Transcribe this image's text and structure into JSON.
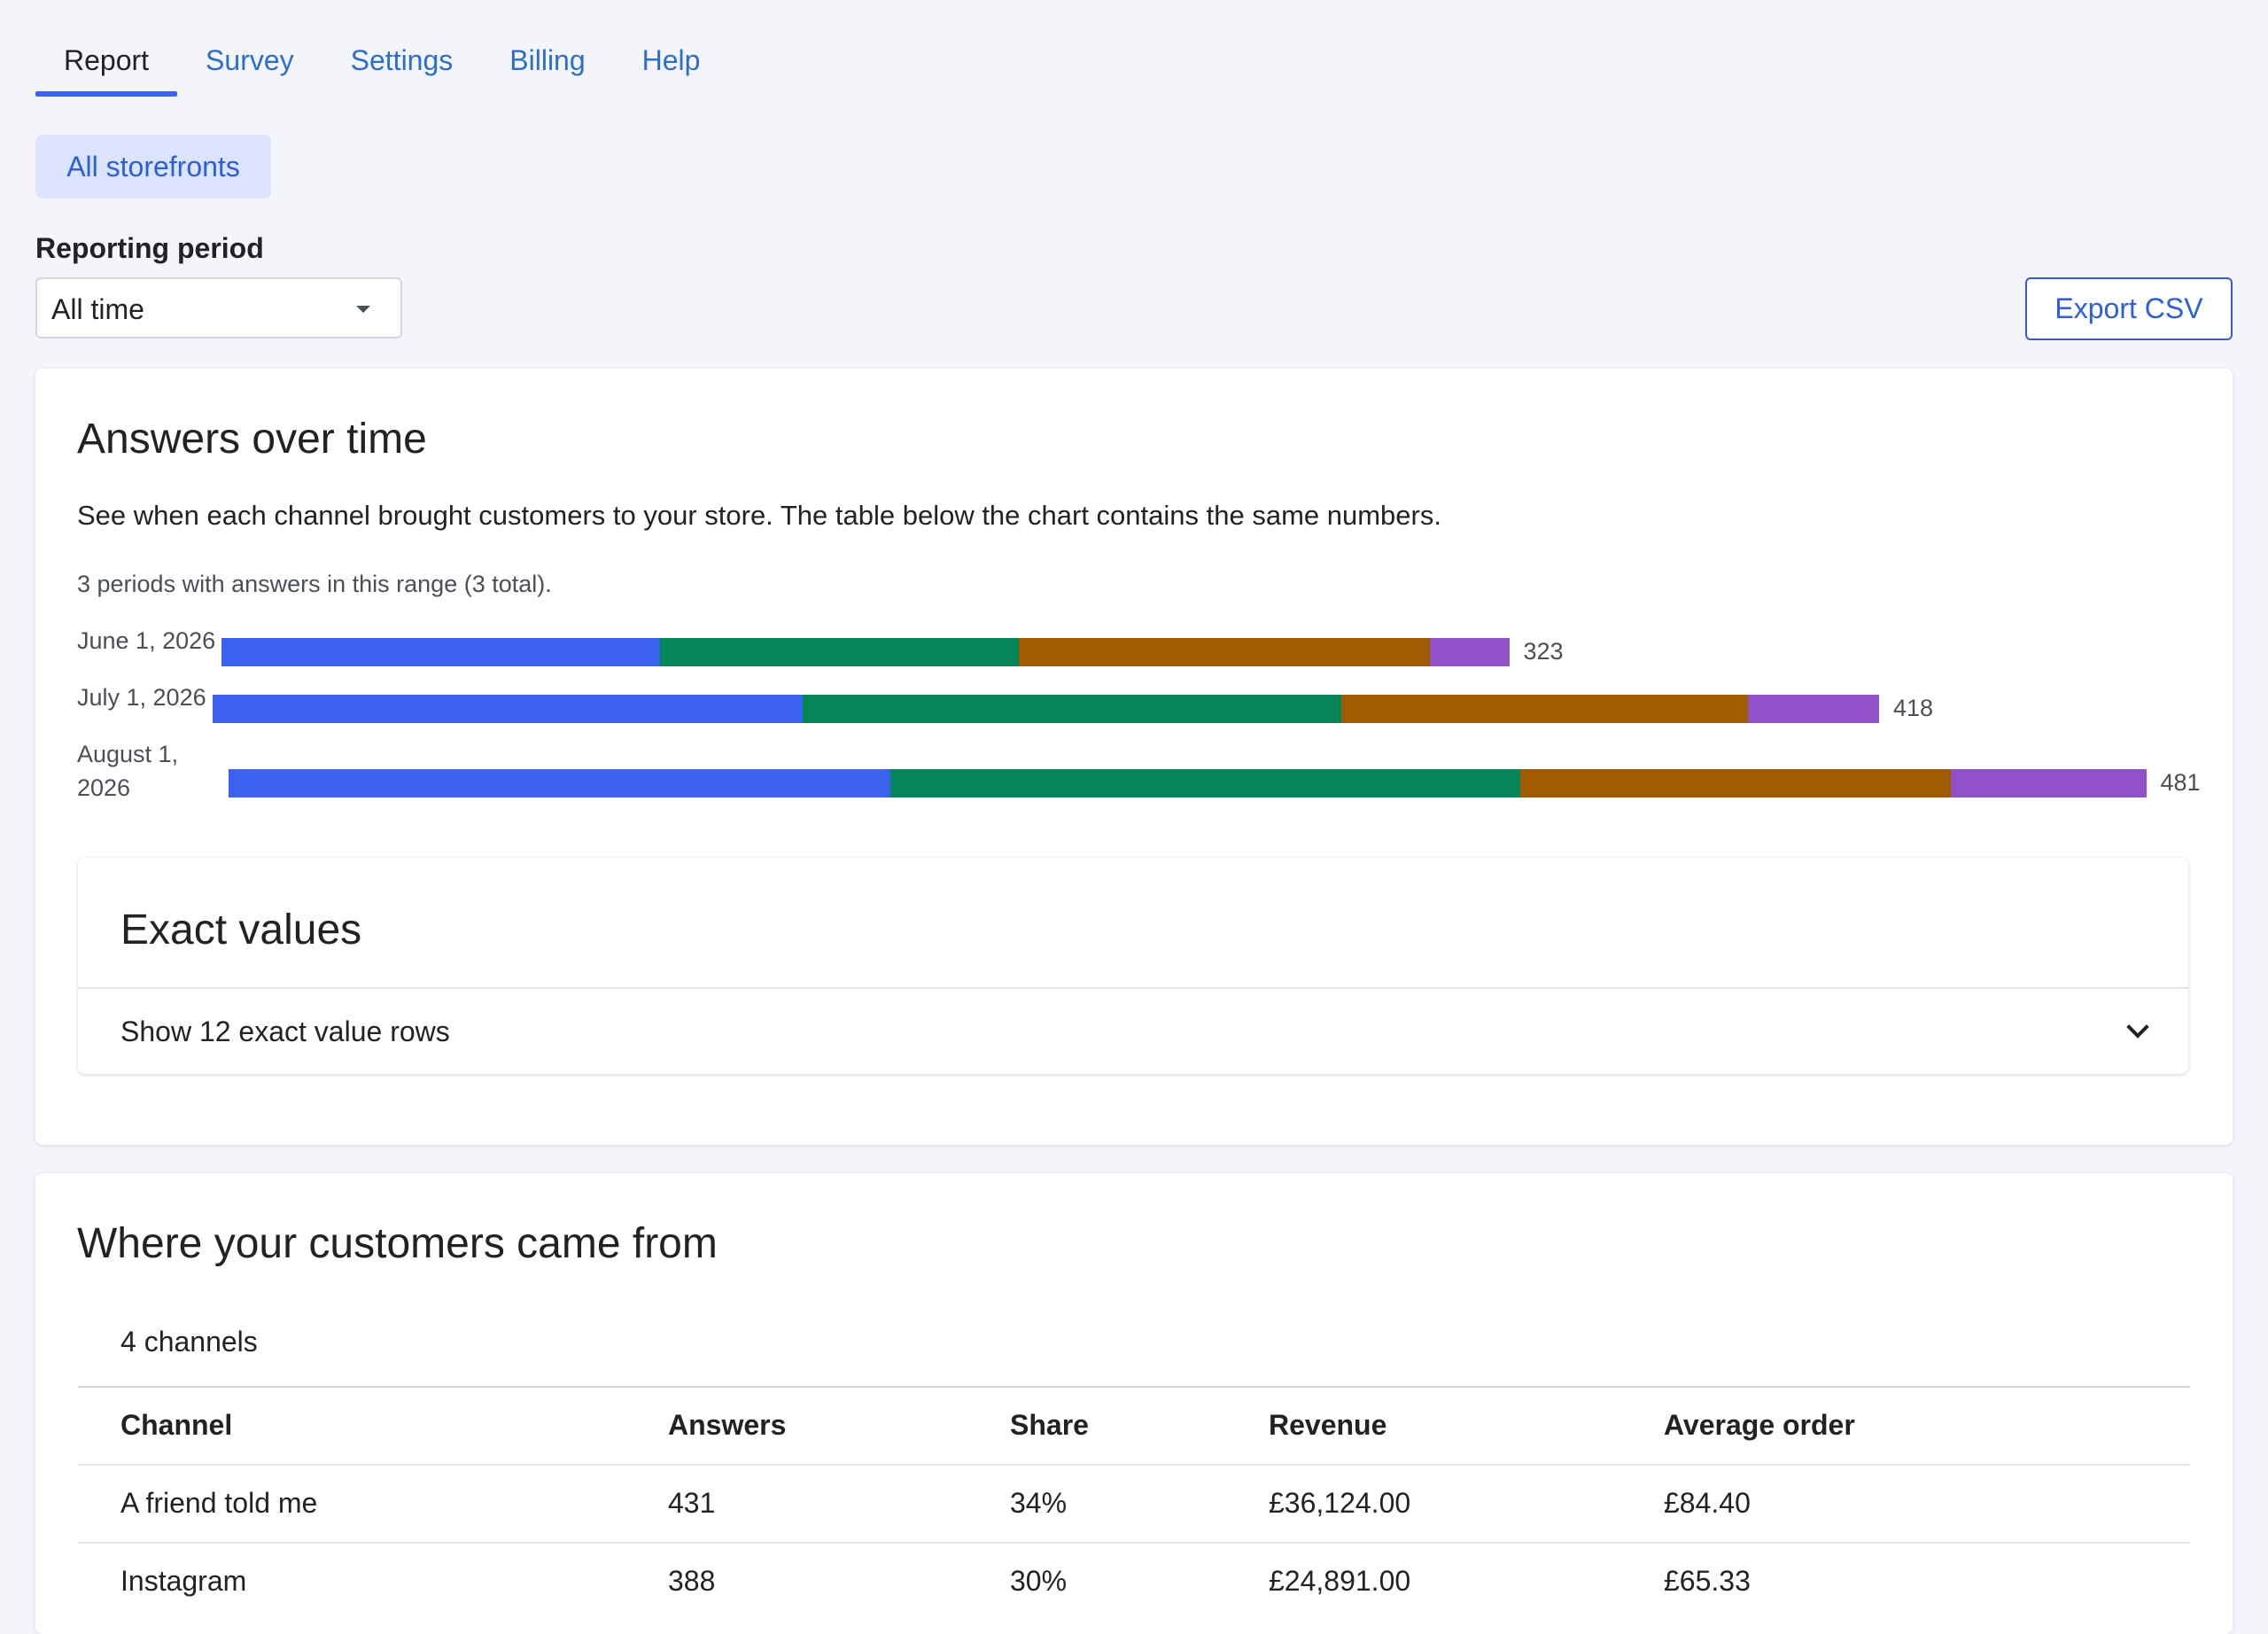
{
  "nav": {
    "tabs": [
      {
        "label": "Report",
        "active": true
      },
      {
        "label": "Survey",
        "active": false
      },
      {
        "label": "Settings",
        "active": false
      },
      {
        "label": "Billing",
        "active": false
      },
      {
        "label": "Help",
        "active": false
      }
    ]
  },
  "filters": {
    "storefront_pill": "All storefronts",
    "period_label": "Reporting period",
    "period_value": "All time",
    "export_label": "Export CSV"
  },
  "answers_card": {
    "title": "Answers over time",
    "description": "See when each channel brought customers to your store. The table below the chart contains the same numbers.",
    "count_text": "3 periods with answers in this range (3 total).",
    "exact_values": {
      "title": "Exact values",
      "toggle_label": "Show 12 exact value rows"
    }
  },
  "chart_data": {
    "type": "bar",
    "orientation": "horizontal",
    "stacked": true,
    "categories": [
      "June 1, 2026",
      "July 1, 2026",
      "August 1, 2026"
    ],
    "totals": [
      323,
      418,
      481
    ],
    "series": [
      {
        "color": "#3b62f0",
        "values": [
          110,
          148,
          166
        ]
      },
      {
        "color": "#068559",
        "values": [
          90,
          135,
          158
        ]
      },
      {
        "color": "#a05a00",
        "values": [
          103,
          102,
          108
        ]
      },
      {
        "color": "#9050c8",
        "values": [
          20,
          33,
          49
        ]
      }
    ]
  },
  "channels_card": {
    "title": "Where your customers came from",
    "count_text": "4 channels",
    "columns": [
      "Channel",
      "Answers",
      "Share",
      "Revenue",
      "Average order"
    ],
    "rows": [
      [
        "A friend told me",
        "431",
        "34%",
        "£36,124.00",
        "£84.40"
      ],
      [
        "Instagram",
        "388",
        "30%",
        "£24,891.00",
        "£65.33"
      ]
    ]
  }
}
